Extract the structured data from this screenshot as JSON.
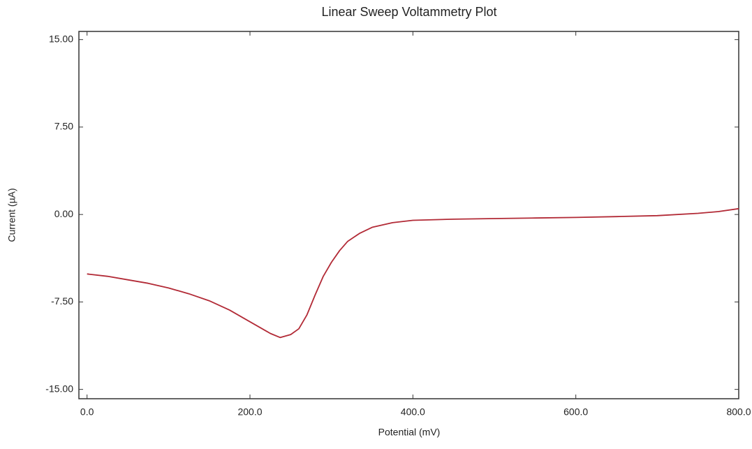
{
  "chart_data": {
    "type": "line",
    "title": "Linear Sweep Voltammetry Plot",
    "x_label": "Potential (mV)",
    "y_label": "Current (µA)",
    "x": [
      0,
      25,
      50,
      75,
      100,
      125,
      150,
      175,
      200,
      215,
      225,
      237,
      250,
      260,
      270,
      280,
      290,
      300,
      310,
      320,
      335,
      350,
      375,
      400,
      450,
      500,
      550,
      600,
      650,
      700,
      750,
      775,
      800
    ],
    "series": [
      {
        "name": "Current",
        "color": "#b22a36",
        "values": [
          -5.1,
          -5.3,
          -5.6,
          -5.9,
          -6.3,
          -6.8,
          -7.4,
          -8.2,
          -9.2,
          -9.8,
          -10.2,
          -10.55,
          -10.3,
          -9.8,
          -8.6,
          -6.9,
          -5.3,
          -4.1,
          -3.1,
          -2.3,
          -1.6,
          -1.1,
          -0.7,
          -0.5,
          -0.4,
          -0.35,
          -0.3,
          -0.25,
          -0.18,
          -0.1,
          0.1,
          0.25,
          0.5
        ]
      }
    ],
    "xlim": [
      -10,
      800
    ],
    "ylim": [
      -15.8,
      15.7
    ],
    "xticks": [
      {
        "value": 0,
        "label": "0.0"
      },
      {
        "value": 200,
        "label": "200.0"
      },
      {
        "value": 400,
        "label": "400.0"
      },
      {
        "value": 600,
        "label": "600.0"
      },
      {
        "value": 800,
        "label": "800.0"
      }
    ],
    "yticks": [
      {
        "value": 15,
        "label": "15.00"
      },
      {
        "value": 7.5,
        "label": "7.50"
      },
      {
        "value": 0,
        "label": "0.00"
      },
      {
        "value": -7.5,
        "label": "-7.50"
      },
      {
        "value": -15,
        "label": "-15.00"
      }
    ],
    "grid": false
  }
}
